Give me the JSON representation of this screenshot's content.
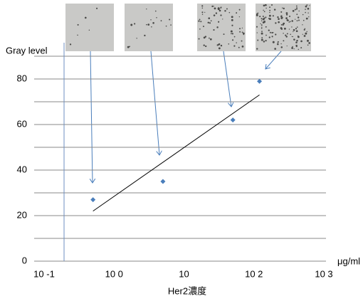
{
  "chart_data": {
    "type": "scatter",
    "y_label": "Gray level",
    "x_label": "Her2濃度",
    "x_unit": "μg/ml",
    "x_log": true,
    "x": [
      0.5,
      5,
      50,
      120
    ],
    "values": [
      27,
      35,
      62,
      79
    ],
    "color": "#4a7ebb",
    "trendline": {
      "x": [
        0.5,
        120
      ],
      "y": [
        22,
        73
      ],
      "color": "#000000"
    },
    "xlim": [
      0.1,
      1000
    ],
    "xticks": [
      {
        "value": 0.1,
        "label": "10 -1"
      },
      {
        "value": 1,
        "label": "10 0"
      },
      10,
      {
        "value": 100,
        "label": "10 2"
      },
      {
        "value": 1000,
        "label": "10 3"
      }
    ],
    "ylim": [
      0,
      90
    ],
    "yticks": [
      0,
      20,
      40,
      60,
      80
    ],
    "minor_yticks": [
      10,
      30,
      50,
      70,
      90
    ],
    "grid": true
  }
}
